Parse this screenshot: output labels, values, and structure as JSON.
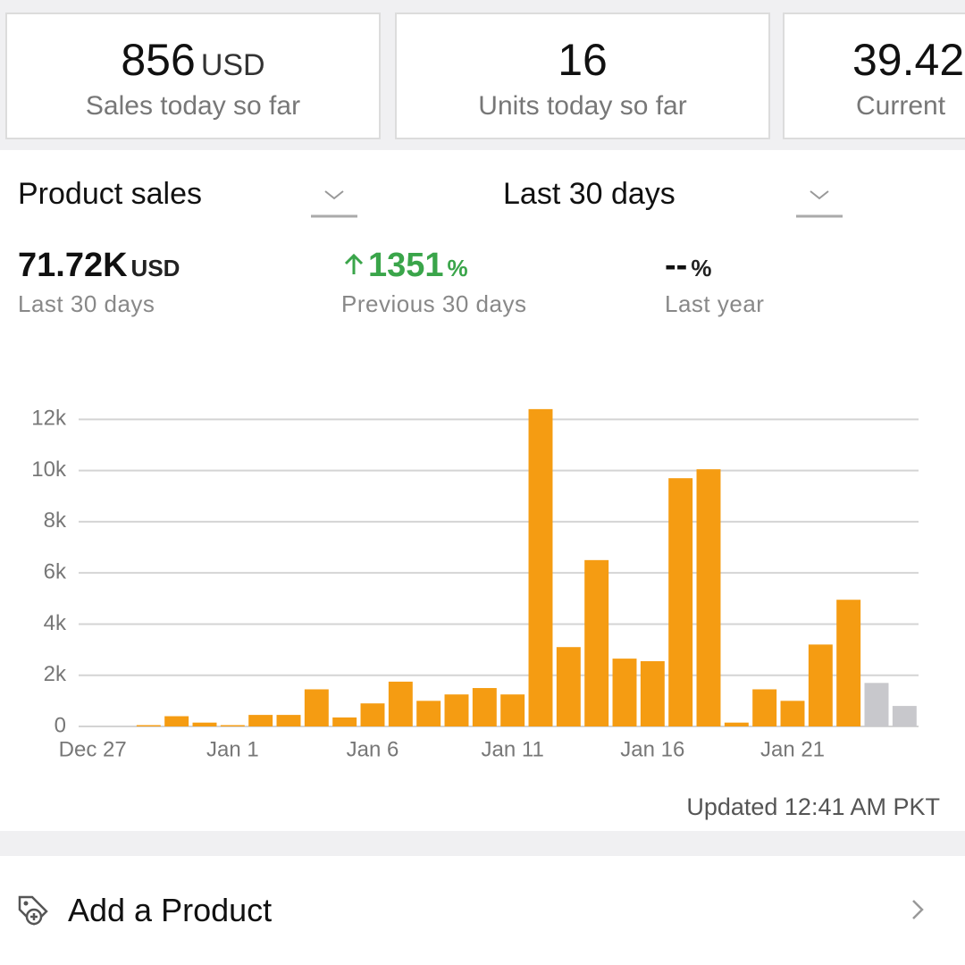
{
  "cards": [
    {
      "value": 856,
      "unit": "USD",
      "label": "Sales today so far"
    },
    {
      "value": 16,
      "label": "Units today so far"
    },
    {
      "value": 39.42,
      "label": "Current"
    }
  ],
  "selectors": {
    "metric": "Product sales",
    "range": "Last 30 days"
  },
  "stats": [
    {
      "value": "71.72K",
      "unit": "USD",
      "label": "Last 30 days"
    },
    {
      "value": 1351,
      "unit": "%",
      "label": "Previous 30 days"
    },
    {
      "value": "--",
      "unit": "%",
      "label": "Last year"
    }
  ],
  "chart_data": {
    "type": "bar",
    "categories": [
      "Dec 27",
      null,
      null,
      null,
      null,
      "Jan 1",
      null,
      null,
      null,
      null,
      "Jan 6",
      null,
      null,
      null,
      null,
      "Jan 11",
      null,
      null,
      null,
      null,
      "Jan 16",
      null,
      null,
      null,
      null,
      "Jan 21",
      null,
      null,
      null,
      null
    ],
    "values": [
      0,
      0,
      50,
      400,
      150,
      50,
      450,
      450,
      1450,
      350,
      900,
      1750,
      1000,
      1250,
      1500,
      1250,
      12400,
      3100,
      6500,
      2650,
      2550,
      9700,
      10050,
      150,
      1450,
      1000,
      3200,
      4950,
      1700,
      800
    ],
    "colors": [
      "#f59c12",
      "#f59c12",
      "#f59c12",
      "#f59c12",
      "#f59c12",
      "#f59c12",
      "#f59c12",
      "#f59c12",
      "#f59c12",
      "#f59c12",
      "#f59c12",
      "#f59c12",
      "#f59c12",
      "#f59c12",
      "#f59c12",
      "#f59c12",
      "#f59c12",
      "#f59c12",
      "#f59c12",
      "#f59c12",
      "#f59c12",
      "#f59c12",
      "#f59c12",
      "#f59c12",
      "#f59c12",
      "#f59c12",
      "#f59c12",
      "#f59c12",
      "#c8c8cc",
      "#c8c8cc"
    ],
    "ylim": [
      0,
      12500
    ],
    "yticks": [
      0,
      {
        "value": 2000,
        "label": "2k"
      },
      {
        "value": 4000,
        "label": "4k"
      },
      {
        "value": 6000,
        "label": "6k"
      },
      {
        "value": 8000,
        "label": "8k"
      },
      {
        "value": 10000,
        "label": "10k"
      },
      {
        "value": 12000,
        "label": "12k"
      }
    ],
    "grid": true
  },
  "updated": "Updated 12:41 AM PKT",
  "action": "Add a Product"
}
